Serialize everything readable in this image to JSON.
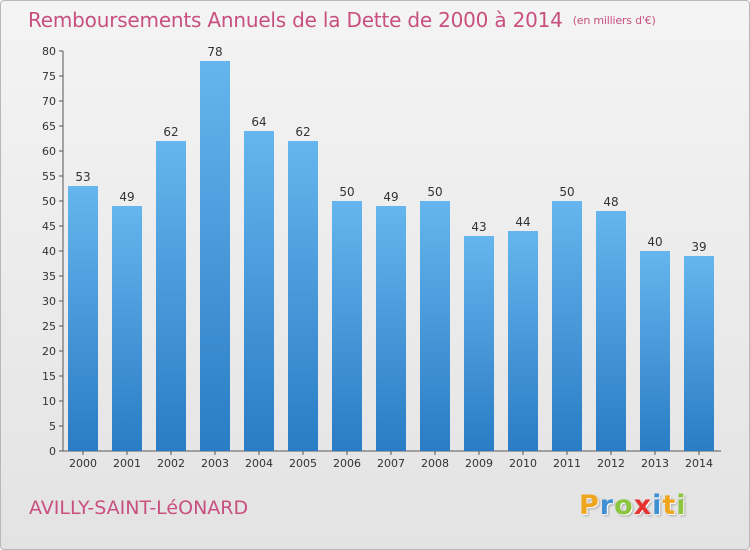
{
  "chart_data": {
    "type": "bar",
    "title": "Remboursements Annuels de la Dette de 2000 à 2014",
    "unit_note": "(en milliers d'€)",
    "categories": [
      "2000",
      "2001",
      "2002",
      "2003",
      "2004",
      "2005",
      "2006",
      "2007",
      "2008",
      "2009",
      "2010",
      "2011",
      "2012",
      "2013",
      "2014"
    ],
    "values": [
      53,
      49,
      62,
      78,
      64,
      62,
      50,
      49,
      50,
      43,
      44,
      50,
      48,
      40,
      39
    ],
    "ylim": [
      0,
      80
    ],
    "yticks": [
      0,
      5,
      10,
      15,
      20,
      25,
      30,
      35,
      40,
      45,
      50,
      55,
      60,
      65,
      70,
      75,
      80
    ],
    "ytick_labels": [
      "0",
      "5",
      "10",
      "15",
      "20",
      "25",
      "30",
      "35",
      "40",
      "45",
      "50",
      "55",
      "60",
      "65",
      "70",
      "75",
      "80"
    ],
    "grid": false,
    "bar_color": "#3d94dc",
    "xlabel": "",
    "ylabel": ""
  },
  "location": "AVILLY-SAINT-LéONARD",
  "logo": {
    "letters": [
      "P",
      "r",
      "o",
      "x",
      "i",
      "t",
      "i"
    ],
    "colors": [
      "#f0a51e",
      "#3f8fd2",
      "#8cc63e",
      "#e8322f",
      "#3f8fd2",
      "#f0a51e",
      "#8cc63e"
    ]
  },
  "colors": {
    "title": "#c8507f",
    "axis": "#555555"
  }
}
